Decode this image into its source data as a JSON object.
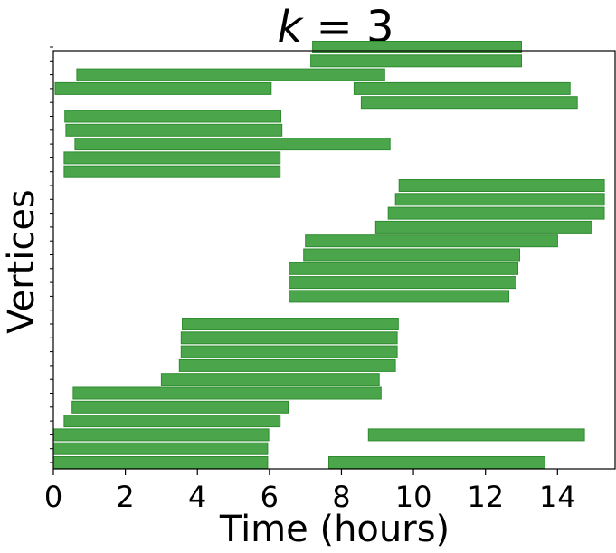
{
  "chart_data": {
    "type": "bar",
    "orientation": "horizontal-intervals",
    "title": "k = 3",
    "xlabel": "Time (hours)",
    "ylabel": "Vertices",
    "xlim": [
      0,
      15.6
    ],
    "xticks": [
      0,
      2,
      4,
      6,
      8,
      10,
      12,
      14
    ],
    "bar_color": "#4ba64b",
    "bar_edge_color": "#2e8b2e",
    "grid": false,
    "intervals": [
      {
        "row": 0,
        "start": 0.0,
        "end": 5.95
      },
      {
        "row": 0,
        "start": 7.65,
        "end": 13.65
      },
      {
        "row": 1,
        "start": 0.0,
        "end": 5.95
      },
      {
        "row": 2,
        "start": 0.0,
        "end": 5.98
      },
      {
        "row": 2,
        "start": 8.75,
        "end": 14.75
      },
      {
        "row": 3,
        "start": 0.3,
        "end": 6.3
      },
      {
        "row": 4,
        "start": 0.52,
        "end": 6.52
      },
      {
        "row": 5,
        "start": 0.55,
        "end": 9.1
      },
      {
        "row": 6,
        "start": 3.0,
        "end": 9.05
      },
      {
        "row": 7,
        "start": 3.5,
        "end": 9.5
      },
      {
        "row": 8,
        "start": 3.55,
        "end": 9.55
      },
      {
        "row": 9,
        "start": 3.55,
        "end": 9.55
      },
      {
        "row": 10,
        "start": 3.58,
        "end": 9.58
      },
      {
        "row": 12,
        "start": 6.55,
        "end": 12.65
      },
      {
        "row": 13,
        "start": 6.55,
        "end": 12.85
      },
      {
        "row": 14,
        "start": 6.55,
        "end": 12.9
      },
      {
        "row": 15,
        "start": 6.95,
        "end": 12.95
      },
      {
        "row": 16,
        "start": 7.0,
        "end": 14.0
      },
      {
        "row": 17,
        "start": 8.95,
        "end": 14.95
      },
      {
        "row": 18,
        "start": 9.3,
        "end": 15.3
      },
      {
        "row": 19,
        "start": 9.5,
        "end": 15.3
      },
      {
        "row": 20,
        "start": 9.6,
        "end": 15.3
      },
      {
        "row": 21,
        "start": 0.3,
        "end": 6.3
      },
      {
        "row": 22,
        "start": 0.3,
        "end": 6.3
      },
      {
        "row": 23,
        "start": 0.6,
        "end": 9.35
      },
      {
        "row": 24,
        "start": 0.35,
        "end": 6.35
      },
      {
        "row": 25,
        "start": 0.32,
        "end": 6.32
      },
      {
        "row": 26,
        "start": 8.55,
        "end": 14.55
      },
      {
        "row": 27,
        "start": 0.05,
        "end": 6.05
      },
      {
        "row": 27,
        "start": 8.35,
        "end": 14.35
      },
      {
        "row": 28,
        "start": 0.65,
        "end": 9.2
      },
      {
        "row": 29,
        "start": 7.15,
        "end": 13.0
      },
      {
        "row": 30,
        "start": 7.2,
        "end": 13.0
      }
    ]
  }
}
